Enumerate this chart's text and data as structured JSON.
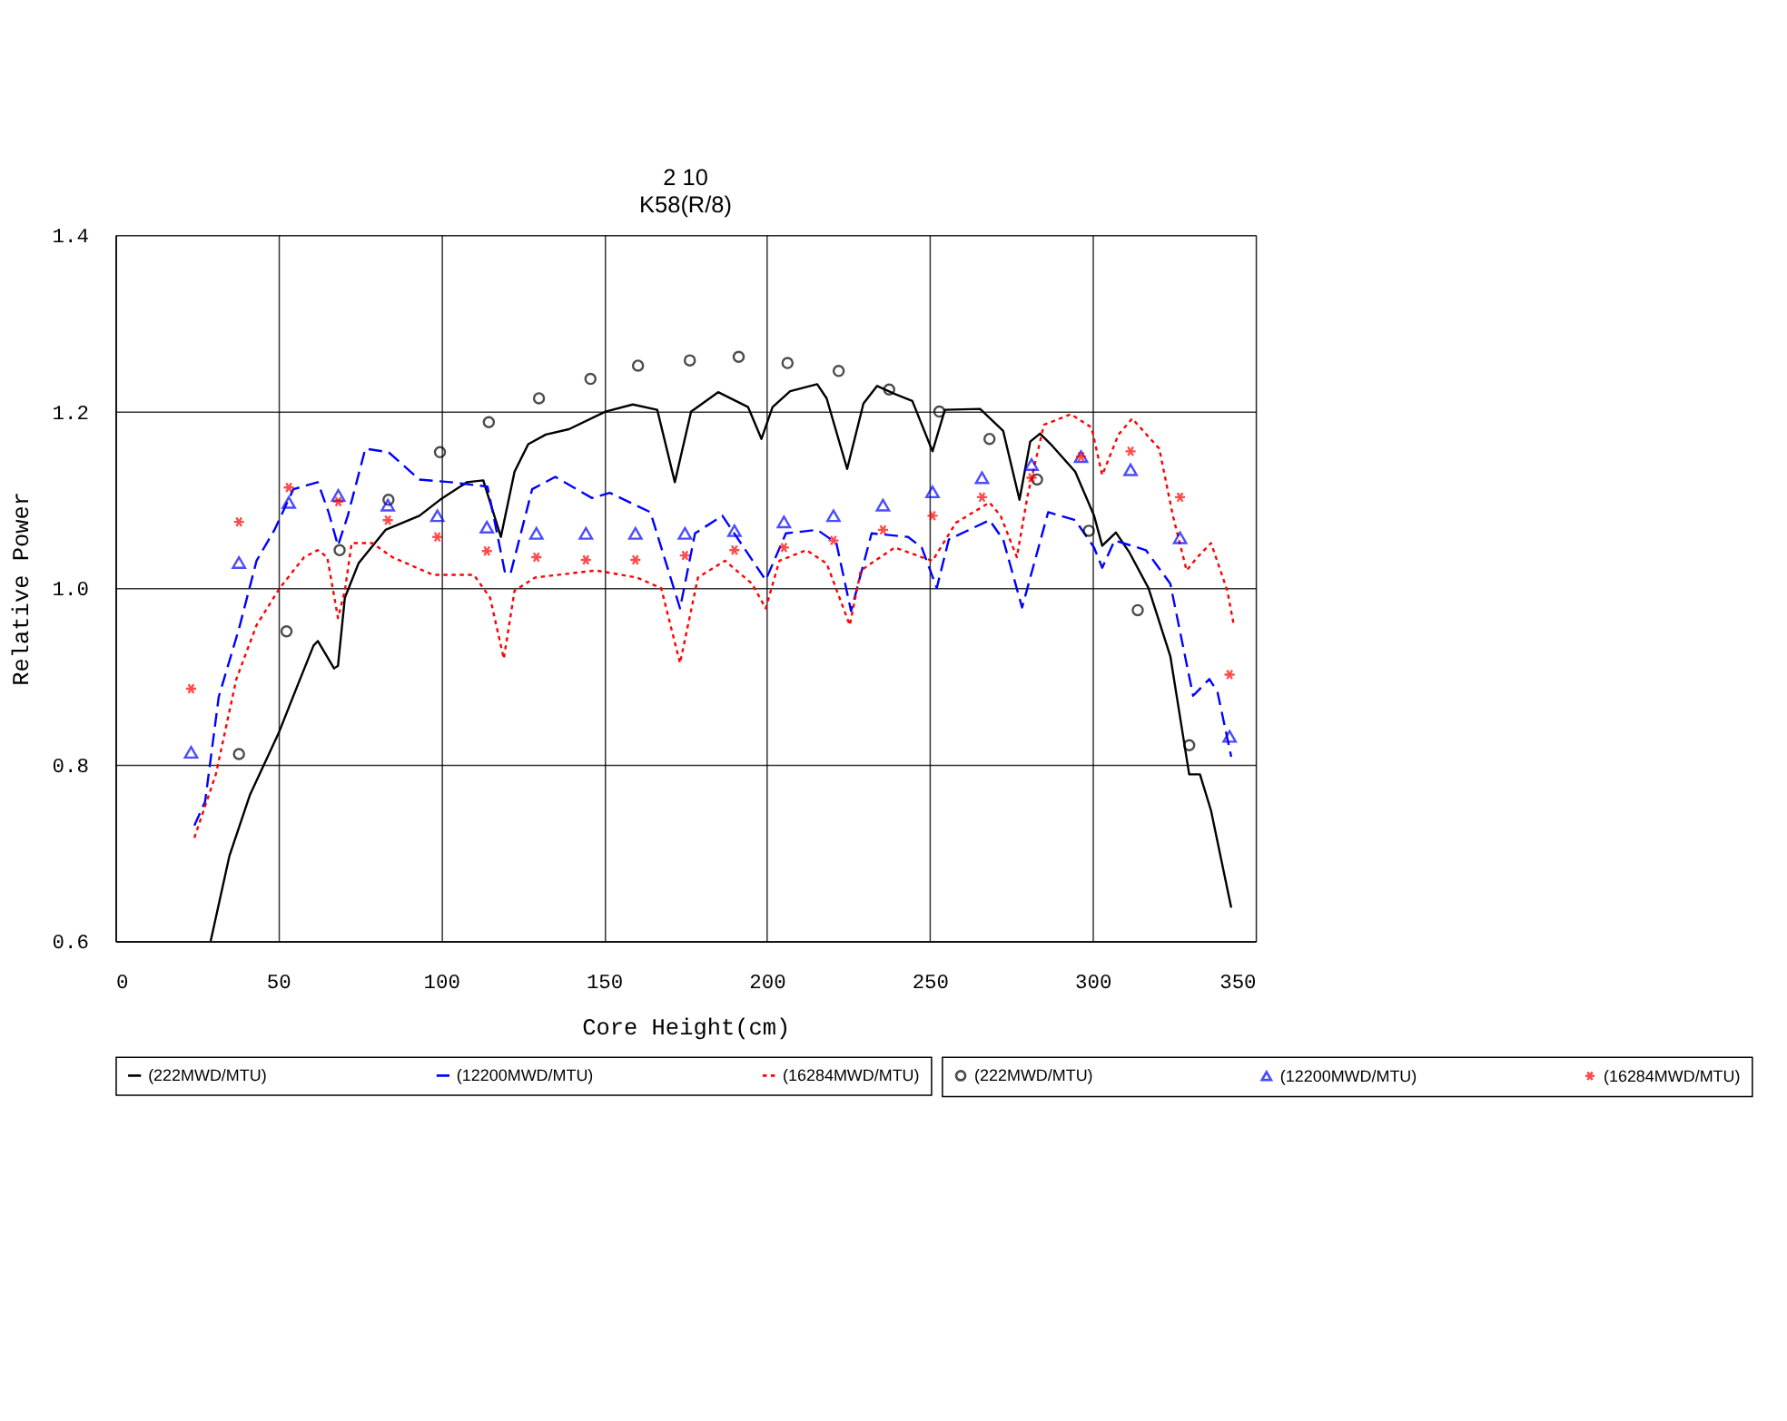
{
  "chart_data": {
    "type": "line",
    "title": "2          10",
    "subtitle": "K58(R/8)",
    "xlabel": "Core Height(cm)",
    "ylabel": "Relative Power",
    "xlim": [
      0,
      350
    ],
    "xticks": [
      0,
      50,
      100,
      150,
      200,
      250,
      300,
      350
    ],
    "ylim": [
      0.6,
      1.4
    ],
    "yticks": [
      0.6,
      0.8,
      {
        "value": 1.0,
        "label": "1.0"
      },
      1.2,
      1.4
    ],
    "grid": true,
    "legend": "bottom",
    "series": [
      {
        "name": "(222MWD/MTU)",
        "line_style": "solid",
        "color": "#000000",
        "x": [
          29.2,
          35.0,
          41.3,
          50.0,
          55.8,
          60.8,
          62.1,
          67.1,
          68.3,
          70.4,
          74.6,
          82.9,
          93.3,
          99.6,
          107.9,
          112.9,
          118.3,
          122.5,
          126.7,
          132.1,
          139.2,
          150.4,
          158.8,
          166.3,
          171.7,
          176.7,
          185.0,
          194.2,
          198.3,
          201.7,
          207.1,
          215.4,
          218.3,
          224.6,
          229.6,
          233.8,
          239.2,
          244.6,
          250.8,
          254.6,
          265.4,
          272.5,
          277.5,
          280.8,
          283.8,
          287.1,
          294.6,
          300.4,
          302.9,
          307.1,
          311.3,
          317.1,
          323.8,
          329.6,
          332.9,
          336.3,
          342.5
        ],
        "values": [
          0.6,
          0.697,
          0.766,
          0.835,
          0.889,
          0.935,
          0.94,
          0.909,
          0.912,
          0.989,
          1.028,
          1.066,
          1.082,
          1.1,
          1.12,
          1.122,
          1.058,
          1.132,
          1.163,
          1.174,
          1.18,
          1.2,
          1.208,
          1.202,
          1.12,
          1.2,
          1.222,
          1.205,
          1.169,
          1.205,
          1.223,
          1.231,
          1.215,
          1.135,
          1.209,
          1.229,
          1.22,
          1.212,
          1.155,
          1.202,
          1.203,
          1.178,
          1.1,
          1.166,
          1.175,
          1.163,
          1.132,
          1.082,
          1.048,
          1.063,
          1.04,
          1.0,
          0.923,
          0.789,
          0.789,
          0.748,
          0.638
        ]
      },
      {
        "name": "(12200MWD/MTU)",
        "line_style": "dashed",
        "color": "#0000ff",
        "x": [
          24.2,
          27.5,
          31.7,
          37.9,
          43.3,
          48.8,
          54.6,
          62.1,
          65.4,
          68.3,
          71.3,
          76.7,
          83.8,
          93.3,
          102.9,
          114.2,
          119.6,
          121.3,
          127.9,
          135.0,
          146.3,
          151.7,
          164.2,
          173.3,
          177.9,
          186.3,
          199.6,
          205.8,
          215.4,
          221.3,
          225.8,
          232.1,
          243.3,
          247.5,
          252.1,
          255.8,
          268.3,
          272.5,
          278.3,
          286.3,
          294.6,
          300.4,
          302.9,
          306.7,
          316.3,
          323.8,
          330.8,
          335.8,
          338.3,
          342.5
        ],
        "values": [
          0.731,
          0.758,
          0.877,
          0.954,
          1.031,
          1.066,
          1.112,
          1.12,
          1.086,
          1.048,
          1.082,
          1.158,
          1.154,
          1.123,
          1.12,
          1.115,
          1.017,
          1.017,
          1.112,
          1.126,
          1.102,
          1.108,
          1.086,
          0.977,
          1.062,
          1.082,
          1.009,
          1.062,
          1.066,
          1.051,
          0.974,
          1.062,
          1.058,
          1.046,
          1.0,
          1.055,
          1.077,
          1.055,
          0.978,
          1.086,
          1.077,
          1.046,
          1.023,
          1.054,
          1.043,
          1.005,
          0.878,
          0.897,
          0.882,
          0.809
        ]
      },
      {
        "name": "(16284MWD/MTU)",
        "line_style": "dotted",
        "color": "#ff0000",
        "x": [
          24.2,
          30.8,
          37.1,
          43.3,
          50.4,
          57.9,
          62.1,
          65.0,
          68.3,
          70.4,
          72.5,
          78.8,
          85.0,
          97.5,
          110.0,
          115.0,
          119.2,
          122.5,
          128.8,
          147.5,
          160.0,
          167.5,
          173.3,
          178.8,
          187.1,
          195.4,
          199.6,
          203.8,
          212.1,
          218.3,
          225.4,
          228.8,
          239.2,
          247.5,
          250.8,
          258.0,
          268.3,
          271.7,
          276.7,
          280.0,
          285.0,
          293.3,
          299.6,
          302.9,
          307.9,
          312.1,
          320.4,
          324.6,
          328.8,
          332.1,
          336.3,
          341.3,
          343.3
        ],
        "values": [
          0.717,
          0.789,
          0.897,
          0.958,
          1.0,
          1.035,
          1.043,
          1.035,
          0.966,
          0.997,
          1.051,
          1.051,
          1.035,
          1.015,
          1.015,
          0.989,
          0.92,
          0.997,
          1.012,
          1.02,
          1.012,
          1.0,
          0.915,
          1.012,
          1.031,
          1.005,
          0.977,
          1.031,
          1.043,
          1.028,
          0.958,
          1.02,
          1.046,
          1.035,
          1.031,
          1.074,
          1.097,
          1.082,
          1.035,
          1.105,
          1.185,
          1.197,
          1.182,
          1.128,
          1.174,
          1.192,
          1.158,
          1.082,
          1.02,
          1.035,
          1.051,
          0.997,
          0.958
        ]
      },
      {
        "name": "(222MWD/MTU)",
        "type": "scatter",
        "marker": "circle",
        "color": "#000000",
        "x": [
          37.9,
          52.5,
          68.8,
          83.8,
          99.6,
          114.6,
          130.0,
          145.8,
          160.4,
          176.3,
          191.3,
          206.3,
          222.0,
          237.5,
          252.9,
          268.3,
          282.9,
          298.8,
          313.8,
          329.6
        ],
        "values": [
          0.812,
          0.951,
          1.043,
          1.1,
          1.154,
          1.188,
          1.215,
          1.237,
          1.252,
          1.258,
          1.262,
          1.255,
          1.246,
          1.225,
          1.2,
          1.169,
          1.123,
          1.065,
          0.975,
          0.822
        ]
      },
      {
        "name": "(12200MWD/MTU)",
        "type": "scatter",
        "marker": "triangle",
        "color": "#0000ff",
        "x": [
          23.2,
          37.9,
          53.2,
          68.4,
          83.6,
          98.8,
          114.0,
          129.2,
          144.4,
          159.6,
          174.8,
          190.0,
          205.2,
          220.4,
          235.6,
          250.8,
          266.0,
          281.2,
          296.4,
          311.6,
          326.8,
          342.0
        ],
        "values": [
          0.814,
          1.029,
          1.097,
          1.105,
          1.094,
          1.082,
          1.069,
          1.062,
          1.062,
          1.062,
          1.062,
          1.065,
          1.075,
          1.082,
          1.094,
          1.109,
          1.125,
          1.14,
          1.149,
          1.134,
          1.057,
          0.832
        ]
      },
      {
        "name": "(16284MWD/MTU)",
        "type": "scatter",
        "marker": "cross",
        "color": "#ff0000",
        "x": [
          23.2,
          37.9,
          53.2,
          68.4,
          83.6,
          98.8,
          114.0,
          129.2,
          144.4,
          159.6,
          174.8,
          190.0,
          205.2,
          220.4,
          235.6,
          250.8,
          266.0,
          281.2,
          296.4,
          311.6,
          326.8,
          342.0
        ],
        "values": [
          0.886,
          1.075,
          1.114,
          1.098,
          1.077,
          1.058,
          1.042,
          1.035,
          1.032,
          1.032,
          1.037,
          1.043,
          1.046,
          1.054,
          1.066,
          1.082,
          1.103,
          1.125,
          1.149,
          1.155,
          1.103,
          0.902
        ]
      }
    ]
  }
}
